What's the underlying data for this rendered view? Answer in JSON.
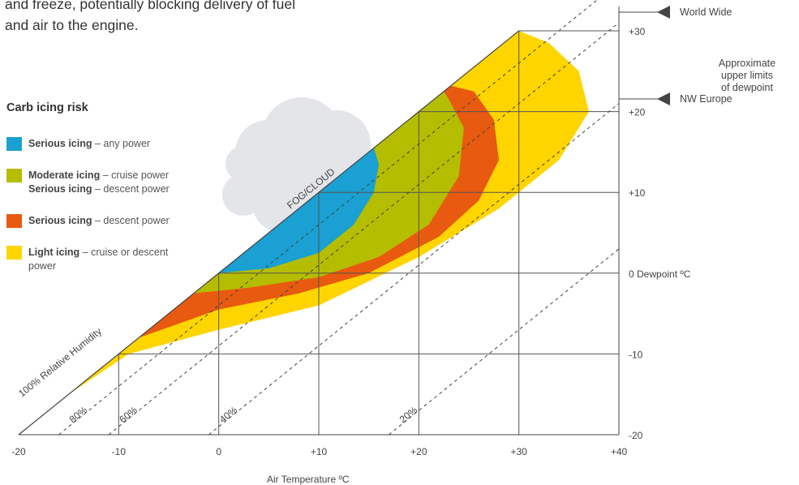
{
  "intro_text": [
    "and freeze, potentially blocking delivery of fuel",
    "and air to the engine."
  ],
  "legend": {
    "title": "Carb icing risk",
    "items": [
      {
        "color": "#1aa0d2",
        "lines": [
          {
            "bold": "Serious icing",
            "rest": " – any power"
          }
        ]
      },
      {
        "color": "#b5bd00",
        "lines": [
          {
            "bold": "Moderate icing",
            "rest": " – cruise power"
          },
          {
            "bold": "Serious icing",
            "rest": " – descent power"
          }
        ]
      },
      {
        "color": "#e85a0f",
        "lines": [
          {
            "bold": "Serious icing",
            "rest": " – descent power"
          }
        ]
      },
      {
        "color": "#ffd500",
        "lines": [
          {
            "bold": "Light icing",
            "rest": " – cruise or descent power"
          }
        ]
      }
    ]
  },
  "markers": {
    "world_wide": "World Wide",
    "nw_europe": "NW Europe"
  },
  "approx_note": [
    "Approximate",
    "upper limits",
    "of dewpoint"
  ],
  "chart_data": {
    "type": "area",
    "xlabel": "Air Temperature ºC",
    "ylabel": "Dewpoint ºC",
    "xlim": [
      -20,
      40
    ],
    "ylim": [
      -20,
      30
    ],
    "x_ticks": [
      "-20",
      "-10",
      "0",
      "+10",
      "+20",
      "+30",
      "+40"
    ],
    "y_ticks": [
      "-20",
      "-10",
      "0 Dewpoint ºC",
      "+10",
      "+20",
      "+30"
    ],
    "grid_lines": [
      -10,
      0,
      10,
      20,
      30
    ],
    "saturation_line_label": "100% Relative Humidity",
    "humidity_lines": [
      {
        "label": "80%",
        "rh": 80
      },
      {
        "label": "60%",
        "rh": 60
      },
      {
        "label": "40%",
        "rh": 40
      },
      {
        "label": "20%",
        "rh": 20
      }
    ],
    "annotation": "FOG/CLOUD",
    "upper_limits": [
      {
        "label": "World Wide",
        "dewpoint": 32
      },
      {
        "label": "NW Europe",
        "dewpoint": 21.5
      }
    ],
    "zones": [
      {
        "name": "Light icing",
        "color": "#ffd500",
        "boundary": [
          [
            -15,
            -15
          ],
          [
            -9,
            -10
          ],
          [
            0,
            -7
          ],
          [
            10,
            -4
          ],
          [
            20,
            2
          ],
          [
            28,
            8
          ],
          [
            34,
            14
          ],
          [
            37,
            20
          ],
          [
            36,
            25
          ],
          [
            33,
            28.5
          ],
          [
            30,
            30
          ]
        ]
      },
      {
        "name": "Serious icing – descent power",
        "color": "#e85a0f",
        "boundary": [
          [
            -8,
            -8
          ],
          [
            0,
            -4.5
          ],
          [
            8,
            -2.5
          ],
          [
            15,
            0
          ],
          [
            22,
            4.5
          ],
          [
            26,
            9
          ],
          [
            28,
            14
          ],
          [
            27.5,
            19
          ],
          [
            25.5,
            22.5
          ],
          [
            23.2,
            23.2
          ]
        ]
      },
      {
        "name": "Moderate icing",
        "color": "#b5bd00",
        "boundary": [
          [
            -2.5,
            -2.5
          ],
          [
            3,
            -1.8
          ],
          [
            10,
            -0.5
          ],
          [
            16,
            2
          ],
          [
            21,
            6
          ],
          [
            24,
            12
          ],
          [
            24.5,
            18
          ],
          [
            23,
            21.5
          ],
          [
            22.5,
            22.5
          ]
        ]
      },
      {
        "name": "Serious icing – any power",
        "color": "#1aa0d2",
        "boundary": [
          [
            0,
            0
          ],
          [
            5,
            0.6
          ],
          [
            10,
            2.5
          ],
          [
            13.5,
            6
          ],
          [
            15.5,
            10
          ],
          [
            16,
            13.5
          ],
          [
            15.5,
            15.5
          ]
        ]
      }
    ]
  }
}
